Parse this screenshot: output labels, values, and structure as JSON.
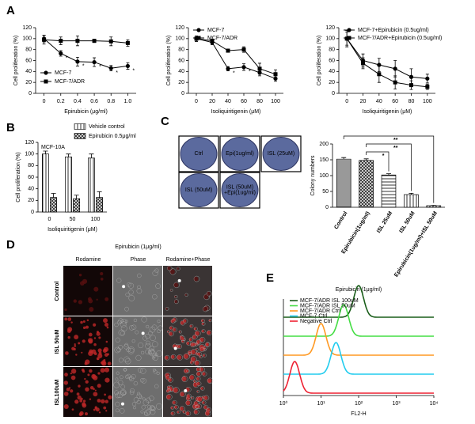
{
  "panels": [
    "A",
    "B",
    "C",
    "D",
    "E"
  ],
  "colony_plates": [
    [
      "Ctrl"
    ],
    [
      "Epi(1ug/ml)"
    ],
    [
      "ISL (25uM)"
    ],
    [
      "ISL (50uM)"
    ],
    [
      "ISL (50uM)",
      "+Epi(1ug/ml)"
    ]
  ],
  "micrographs": {
    "title": "Epirubicin (1μg/ml)",
    "columns": [
      "Rodamine",
      "Phase",
      "Rodamine+Phase"
    ],
    "rows": [
      "Control",
      "ISL 50uM",
      "ISL100uM"
    ]
  },
  "chart_data": [
    {
      "type": "line",
      "xlabel": "Epirubicin (μg/ml)",
      "ylabel": "Cell proliferation (%)",
      "x": [
        0,
        0.2,
        0.4,
        0.6,
        0.8,
        1
      ],
      "xlim": [
        -0.1,
        1.1
      ],
      "xticks": [
        0,
        0.2,
        0.4,
        0.6,
        0.8,
        {
          "value": 1,
          "label": "1.0"
        }
      ],
      "ylim": [
        0,
        120
      ],
      "yticks": [
        0,
        20,
        40,
        60,
        80,
        100,
        120
      ],
      "legend": "lower left",
      "series": [
        {
          "name": "MCF-7",
          "color": "#000000",
          "marker": "circle",
          "values": [
            100,
            73,
            58,
            57,
            46,
            50
          ],
          "errors": [
            6,
            5,
            8,
            8,
            5,
            6
          ],
          "significance": [
            null,
            "*",
            "*",
            "*",
            "*",
            "*"
          ]
        },
        {
          "name": "MCF-7/ADR",
          "color": "#000000",
          "marker": "square",
          "values": [
            98,
            96,
            96,
            96,
            95,
            92
          ],
          "errors": [
            8,
            7,
            9,
            3,
            8,
            6
          ]
        }
      ]
    },
    {
      "type": "line",
      "xlabel": "Isoliquiritigenin (μM)",
      "ylabel": "Cell proliferation (%)",
      "x": [
        0,
        20,
        40,
        60,
        80,
        100
      ],
      "xlim": [
        -10,
        110
      ],
      "xticks": [
        0,
        20,
        40,
        60,
        80,
        100
      ],
      "ylim": [
        0,
        120
      ],
      "yticks": [
        0,
        20,
        40,
        60,
        80,
        100,
        120
      ],
      "legend": "upper left",
      "series": [
        {
          "name": "MCF-7",
          "color": "#000000",
          "marker": "circle",
          "values": [
            100,
            93,
            45,
            48,
            38,
            27
          ],
          "errors": [
            5,
            4,
            4,
            6,
            6,
            5
          ],
          "significance": [
            null,
            null,
            "*",
            "*",
            null,
            null
          ]
        },
        {
          "name": "MCF-7/ADR",
          "color": "#000000",
          "marker": "square",
          "values": [
            100,
            96,
            78,
            80,
            45,
            35
          ],
          "errors": [
            5,
            3,
            3,
            5,
            10,
            8
          ]
        }
      ]
    },
    {
      "type": "line",
      "xlabel": "Isoliquiritigenin (μM)",
      "ylabel": "Cell proliferation (%)",
      "x": [
        0,
        20,
        40,
        60,
        80,
        100
      ],
      "xlim": [
        -10,
        110
      ],
      "xticks": [
        0,
        20,
        40,
        60,
        80,
        100
      ],
      "ylim": [
        0,
        120
      ],
      "yticks": [
        0,
        20,
        40,
        60,
        80,
        100,
        120
      ],
      "legend": "upper left",
      "series": [
        {
          "name": "MCF-7+Epirubicin (0.5ug/ml)",
          "color": "#000000",
          "marker": "circle",
          "values": [
            100,
            60,
            52,
            45,
            30,
            27
          ],
          "errors": [
            15,
            12,
            12,
            15,
            15,
            8
          ]
        },
        {
          "name": "MCF-7/ADR+Epirubicin (0.5ug/ml)",
          "color": "#000000",
          "marker": "square",
          "values": [
            100,
            55,
            35,
            20,
            15,
            12
          ],
          "errors": [
            12,
            10,
            15,
            12,
            8,
            5
          ]
        }
      ]
    },
    {
      "type": "bar",
      "xlabel": "Isoliquiritigenin (μM)",
      "ylabel": "Cell proliferation (%)",
      "annotation": "MCF-10A",
      "categories": [
        "0",
        "50",
        "100"
      ],
      "ylim": [
        0,
        120
      ],
      "yticks": [
        0,
        20,
        40,
        60,
        80,
        100,
        120
      ],
      "legend": "top",
      "series": [
        {
          "name": "Vehicle control",
          "color": "#333333",
          "values": [
            100,
            95,
            93
          ],
          "errors": [
            5,
            5,
            7
          ]
        },
        {
          "name": "Epirubicin 0.5μg/ml",
          "color": "#333333",
          "values": [
            25,
            23,
            25
          ],
          "errors": [
            7,
            6,
            10
          ]
        }
      ]
    },
    {
      "type": "bar",
      "ylabel": "Colony numbers",
      "categories": [
        "Control",
        "Epirubicin(1ug/ml)",
        "ISL 25uM",
        "ISL 50uM",
        "Epirubicin(1ug/ml)+ISL 50uM"
      ],
      "values": [
        152,
        148,
        102,
        40,
        5
      ],
      "errors": [
        5,
        5,
        4,
        4,
        1
      ],
      "color": "#333333",
      "ylim": [
        0,
        200
      ],
      "yticks": [
        0,
        50,
        100,
        150,
        200
      ],
      "significance": [
        "*",
        "**",
        "**"
      ]
    },
    {
      "type": "flow",
      "title": "Epirubicin (1μg/ml)",
      "xlabel": "FL2-H",
      "xlog": true,
      "xlim": [
        1,
        10000
      ],
      "xticks": [
        {
          "value": 1,
          "label": "10⁰"
        },
        {
          "value": 10,
          "label": "10¹"
        },
        {
          "value": 100,
          "label": "10²"
        },
        {
          "value": 1000,
          "label": "10³"
        },
        {
          "value": 10000,
          "label": "10⁴"
        }
      ],
      "legend": "upper left",
      "series": [
        {
          "name": "MCF-7/ADR ISL 100uM",
          "color": "#1a5e1a",
          "peak": 100
        },
        {
          "name": "MCF-7/ADR ISL  50uM",
          "color": "#44dd44",
          "peak": 40
        },
        {
          "name": "MCF-7/ADR Ctrl",
          "color": "#ff9922",
          "peak": 10
        },
        {
          "name": "MCF-7 Ctrl",
          "color": "#22ccee",
          "peak": 25
        },
        {
          "name": "Negative Ctrl",
          "color": "#ee2233",
          "peak": 2
        }
      ]
    }
  ]
}
